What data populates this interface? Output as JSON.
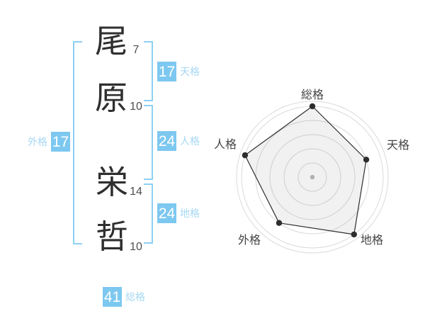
{
  "name": {
    "chars": [
      {
        "char": "尾",
        "strokes": "7"
      },
      {
        "char": "原",
        "strokes": "10"
      },
      {
        "char": "栄",
        "strokes": "14"
      },
      {
        "char": "哲",
        "strokes": "10"
      }
    ],
    "kaku": {
      "gaikaku": {
        "label": "外格",
        "value": "17"
      },
      "tenkaku": {
        "label": "天格",
        "value": "17"
      },
      "jinkaku": {
        "label": "人格",
        "value": "24"
      },
      "chikaku": {
        "label": "地格",
        "value": "24"
      },
      "soukaku": {
        "label": "総格",
        "value": "41"
      }
    }
  },
  "chart_data": {
    "type": "radar",
    "categories": [
      "総格",
      "天格",
      "地格",
      "外格",
      "人格"
    ],
    "values": [
      5,
      4,
      5,
      4,
      5
    ],
    "max": 5,
    "rings": 5,
    "start_angle_deg": -90,
    "direction": "clockwise",
    "grid": "circular",
    "legend": "none",
    "title": ""
  },
  "colors": {
    "accent_blue": "#7dc8f0",
    "label_blue": "#a7d8f3",
    "bracket_blue": "#8dd0f2",
    "text_dark": "#2f2f2f",
    "ring_gray": "#dadada",
    "series_dark": "#2d2d2d",
    "series_fill": "rgba(0,0,0,0.055)",
    "center_dot": "#bcbcbc"
  }
}
